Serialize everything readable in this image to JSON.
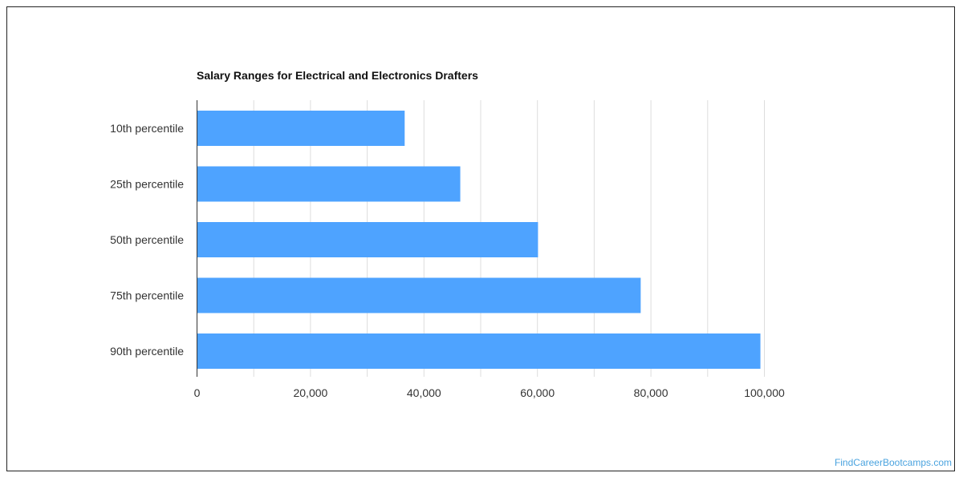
{
  "chart_data": {
    "type": "bar",
    "orientation": "horizontal",
    "title": "Salary Ranges for Electrical and Electronics Drafters",
    "categories": [
      "10th percentile",
      "25th percentile",
      "50th percentile",
      "75th percentile",
      "90th percentile"
    ],
    "values": [
      36600,
      46400,
      60100,
      78200,
      99300
    ],
    "xlim": [
      0,
      100000
    ],
    "x_ticks": [
      "0",
      "20,000",
      "40,000",
      "60,000",
      "80,000",
      "100,000"
    ],
    "grid": "vertical",
    "legend": "none",
    "bar_color": "#4ea3ff"
  },
  "watermark": {
    "text": "FindCareerBootcamps.com",
    "color": "#4aa3df"
  }
}
